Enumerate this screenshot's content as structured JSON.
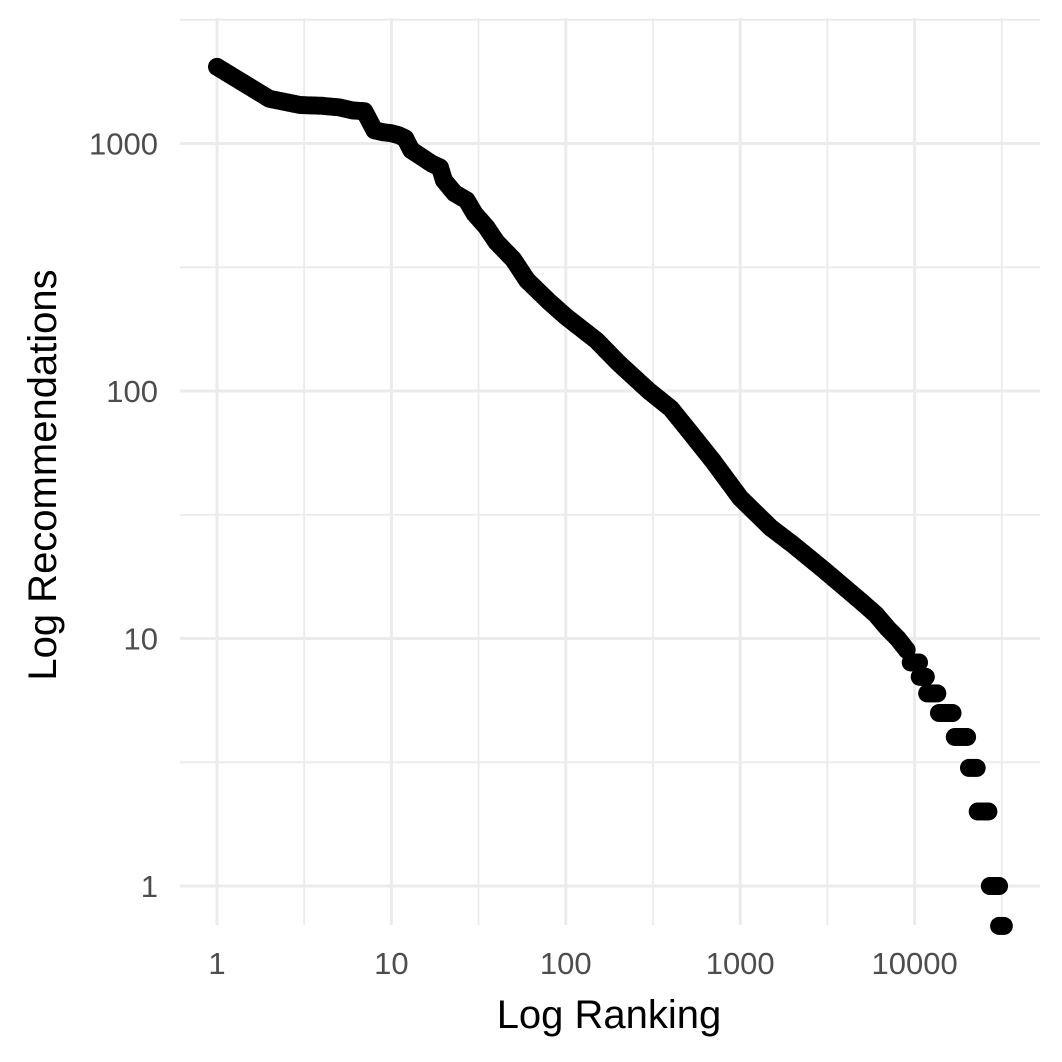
{
  "chart_data": {
    "type": "scatter",
    "xlabel": "Log Ranking",
    "ylabel": "Log Recommendations",
    "x_scale": "log10",
    "y_scale": "log10",
    "xlim": [
      0.8,
      45000
    ],
    "ylim": [
      0.66,
      3800
    ],
    "grid": true,
    "legend": "none",
    "point_color": "#000000",
    "grid_color": "#ebebeb",
    "x_ticks": [
      {
        "value": 1,
        "label": "1"
      },
      {
        "value": 10,
        "label": "10"
      },
      {
        "value": 100,
        "label": "100"
      },
      {
        "value": 1000,
        "label": "1000"
      },
      {
        "value": 10000,
        "label": "10000"
      }
    ],
    "y_ticks": [
      {
        "value": 1,
        "label": "1"
      },
      {
        "value": 10,
        "label": "10"
      },
      {
        "value": 100,
        "label": "100"
      },
      {
        "value": 1000,
        "label": "1000"
      }
    ],
    "x_minor_ticks": [
      3.16,
      31.6,
      316,
      3160,
      31600
    ],
    "y_minor_ticks": [
      3.16,
      31.6,
      316,
      3160
    ],
    "anchor_points": [
      [
        1,
        2040
      ],
      [
        2,
        1515
      ],
      [
        3,
        1430
      ],
      [
        4,
        1420
      ],
      [
        5,
        1400
      ],
      [
        6,
        1360
      ],
      [
        7,
        1350
      ],
      [
        8,
        1130
      ],
      [
        9,
        1110
      ],
      [
        10,
        1100
      ],
      [
        11,
        1080
      ],
      [
        12,
        1050
      ],
      [
        13,
        940
      ],
      [
        15,
        880
      ],
      [
        17,
        830
      ],
      [
        19,
        800
      ],
      [
        20,
        710
      ],
      [
        23,
        630
      ],
      [
        27,
        590
      ],
      [
        30,
        520
      ],
      [
        35,
        460
      ],
      [
        40,
        400
      ],
      [
        50,
        340
      ],
      [
        60,
        280
      ],
      [
        80,
        230
      ],
      [
        100,
        200
      ],
      [
        150,
        160
      ],
      [
        200,
        130
      ],
      [
        300,
        100
      ],
      [
        400,
        85
      ],
      [
        500,
        70
      ],
      [
        700,
        52
      ],
      [
        1000,
        37
      ],
      [
        1500,
        28
      ],
      [
        2000,
        24
      ],
      [
        3000,
        19
      ],
      [
        4000,
        16
      ],
      [
        5000,
        14
      ],
      [
        6000,
        12.5
      ],
      [
        7000,
        11
      ],
      [
        8000,
        10
      ],
      [
        9000,
        9
      ]
    ],
    "count_levels": [
      {
        "y": 8,
        "x_from": 9500,
        "x_to": 10600
      },
      {
        "y": 7,
        "x_from": 10700,
        "x_to": 11600
      },
      {
        "y": 6,
        "x_from": 11800,
        "x_to": 13500
      },
      {
        "y": 5,
        "x_from": 13800,
        "x_to": 16500
      },
      {
        "y": 4,
        "x_from": 17000,
        "x_to": 20000
      },
      {
        "y": 3,
        "x_from": 20500,
        "x_to": 22700
      },
      {
        "y": 2,
        "x_from": 23000,
        "x_to": 26500
      },
      {
        "y": 1,
        "x_from": 27000,
        "x_to": 30500
      },
      {
        "y": 0.69,
        "x_from": 30500,
        "x_to": 32500
      }
    ]
  }
}
